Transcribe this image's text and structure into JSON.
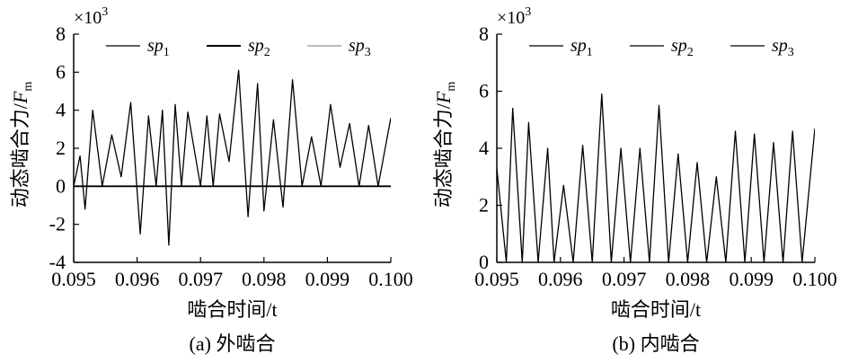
{
  "chart_data": [
    {
      "type": "line",
      "panel_caption": "(a) 外啮合",
      "xlabel": "啮合时间/t",
      "ylabel": "动态啮合力/F_m",
      "ylabel_main": "动态啮合力/",
      "ylabel_var": "F",
      "ylabel_sub": "m",
      "y_multiplier": {
        "base": "×10",
        "exp": "3"
      },
      "xlim": [
        0.095,
        0.1
      ],
      "ylim": [
        -4,
        8
      ],
      "x_ticks": [
        "0.095",
        "0.096",
        "0.097",
        "0.098",
        "0.099",
        "0.100"
      ],
      "y_ticks": [
        "-4",
        "-2",
        "0",
        "2",
        "4",
        "6",
        "8"
      ],
      "legend_position": "top",
      "series": [
        {
          "name": "sp1",
          "name_main": "sp",
          "name_sub": "1",
          "color": "#000000",
          "width": 1.2
        },
        {
          "name": "sp2",
          "name_main": "sp",
          "name_sub": "2",
          "color": "#000000",
          "width": 2.0
        },
        {
          "name": "sp3",
          "name_main": "sp",
          "name_sub": "3",
          "color": "#777777",
          "width": 1.0
        }
      ],
      "x": [
        0.095,
        0.0951,
        0.09518,
        0.0953,
        0.09545,
        0.0956,
        0.09575,
        0.0959,
        0.09605,
        0.09618,
        0.0963,
        0.0964,
        0.0965,
        0.0966,
        0.0967,
        0.0968,
        0.097,
        0.0971,
        0.0972,
        0.0973,
        0.09745,
        0.0976,
        0.09775,
        0.0979,
        0.098,
        0.09815,
        0.0983,
        0.09845,
        0.0986,
        0.09875,
        0.0989,
        0.09905,
        0.0992,
        0.09935,
        0.0995,
        0.09965,
        0.0998,
        0.1
      ],
      "y": [
        0.0,
        1.6,
        -1.2,
        4.0,
        0.0,
        2.7,
        0.5,
        4.4,
        -2.5,
        3.7,
        0.0,
        4.0,
        -3.1,
        4.3,
        0.0,
        3.9,
        0.0,
        3.7,
        0.0,
        3.8,
        1.3,
        6.1,
        -1.6,
        5.4,
        -1.3,
        3.5,
        -1.1,
        5.6,
        0.0,
        2.6,
        0.0,
        4.3,
        1.0,
        3.3,
        0.0,
        3.2,
        0.0,
        3.6
      ]
    },
    {
      "type": "line",
      "panel_caption": "(b) 内啮合",
      "xlabel": "啮合时间/t",
      "ylabel": "动态啮合力/F_m",
      "ylabel_main": "动态啮合力/",
      "ylabel_var": "F",
      "ylabel_sub": "m",
      "y_multiplier": {
        "base": "×10",
        "exp": "3"
      },
      "xlim": [
        0.095,
        0.1
      ],
      "ylim": [
        0,
        8
      ],
      "x_ticks": [
        "0.095",
        "0.096",
        "0.097",
        "0.098",
        "0.099",
        "0.100"
      ],
      "y_ticks": [
        "0",
        "2",
        "4",
        "6",
        "8"
      ],
      "legend_position": "top",
      "series": [
        {
          "name": "sp1",
          "name_main": "sp",
          "name_sub": "1",
          "color": "#000000",
          "width": 1.2
        },
        {
          "name": "sp2",
          "name_main": "sp",
          "name_sub": "2",
          "color": "#000000",
          "width": 1.2
        },
        {
          "name": "sp3",
          "name_main": "sp",
          "name_sub": "3",
          "color": "#000000",
          "width": 1.2
        }
      ],
      "x": [
        0.095,
        0.09515,
        0.09525,
        0.0954,
        0.0955,
        0.09565,
        0.0958,
        0.0959,
        0.09605,
        0.0962,
        0.09635,
        0.0965,
        0.09665,
        0.0968,
        0.09695,
        0.0971,
        0.09725,
        0.0974,
        0.09755,
        0.0977,
        0.09785,
        0.098,
        0.09815,
        0.0983,
        0.09845,
        0.0986,
        0.09875,
        0.0989,
        0.09905,
        0.0992,
        0.09935,
        0.0995,
        0.09965,
        0.0998,
        0.1
      ],
      "y": [
        3.3,
        0.0,
        5.4,
        0.0,
        4.9,
        0.0,
        4.0,
        0.0,
        2.7,
        0.0,
        4.1,
        0.0,
        5.9,
        0.0,
        4.0,
        0.0,
        4.0,
        0.0,
        5.5,
        0.0,
        3.8,
        0.0,
        3.5,
        0.0,
        3.0,
        0.0,
        4.6,
        0.0,
        4.5,
        0.0,
        4.2,
        0.0,
        4.6,
        0.0,
        4.7
      ]
    }
  ]
}
